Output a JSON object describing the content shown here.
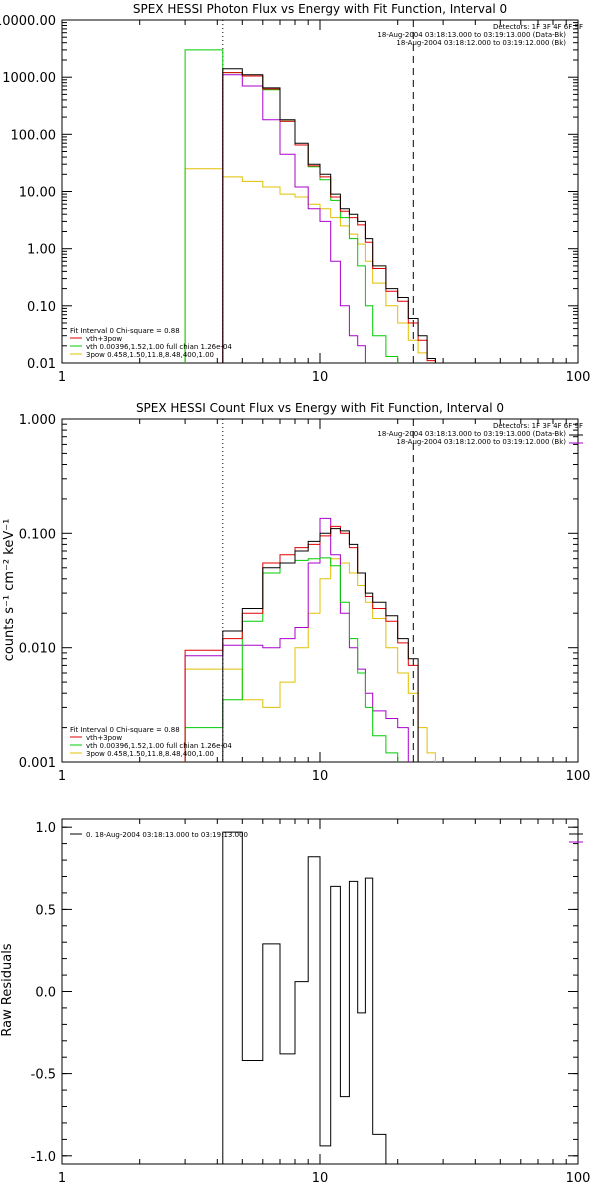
{
  "figure": {
    "background": "#ffffff",
    "colors": {
      "total": "#000000",
      "model": "#e00000",
      "vth": "#00cc00",
      "vth_dim": "#aa00cc",
      "powerlaw": "#e0c000"
    }
  },
  "chart_data": [
    {
      "type": "line",
      "title": "SPEX HESSI Photon Flux vs Energy with Fit Function, Interval 0",
      "xlabel": "",
      "ylabel": "",
      "xscale": "log",
      "yscale": "log",
      "xlim": [
        1,
        100
      ],
      "ylim": [
        0.01,
        10000
      ],
      "x_ticks": [
        1,
        10,
        100
      ],
      "x_tick_labels": [
        "1",
        "10",
        "100"
      ],
      "y_ticks": [
        0.01,
        0.1,
        1,
        10,
        100,
        1000,
        10000
      ],
      "y_tick_labels": [
        "0.01",
        "0.10",
        "1.00",
        "10.00",
        "100.00",
        "1000.00",
        "10000.00"
      ],
      "vlines": [
        {
          "x": 4.2,
          "style": "dotted"
        },
        {
          "x": 23,
          "style": "dashed"
        }
      ],
      "edges": [
        3,
        4.2,
        5,
        6,
        7,
        8,
        9,
        10,
        11,
        12,
        13,
        14,
        15,
        16,
        18,
        20,
        22,
        24,
        26,
        28,
        30
      ],
      "legend_top": [
        "Detectors: 1F 3F 4F 6F 9F",
        "18-Aug-2004 03:18:13.000 to 03:19:13.000 (Data-Bk)",
        "18-Aug-2004 03:18:12.000 to 03:19:12.000 (Bk)"
      ],
      "legend_bottom": [
        "Fit Interval 0   Chi-square = 0.88",
        "vth+3pow",
        "vth 0.00396,1.52,1.00  full chian 1.26e-04",
        "3pow 0.458,1.50,11.8,8.48,400,1.00"
      ],
      "series": [
        {
          "name": "",
          "role": "total",
          "values": [
            null,
            1400,
            1100,
            650,
            180,
            70,
            30,
            20,
            9,
            5,
            4,
            3,
            1.5,
            0.5,
            0.2,
            0.14,
            0.06,
            0.03,
            0.012,
            null
          ]
        },
        {
          "name": "vth+3pow",
          "role": "model",
          "values": [
            null,
            1200,
            1050,
            620,
            170,
            65,
            28,
            18,
            8,
            4.5,
            3.5,
            2.6,
            1.3,
            0.45,
            0.18,
            0.12,
            0.05,
            0.025,
            0.011,
            null
          ]
        },
        {
          "name": "vth",
          "role": "vth",
          "values": [
            3000,
            1200,
            1050,
            600,
            170,
            65,
            27,
            16,
            7,
            3.5,
            1.5,
            0.5,
            0.1,
            0.03,
            0.013,
            null,
            null,
            null,
            null,
            null
          ]
        },
        {
          "name": "",
          "role": "vth_dim",
          "values": [
            null,
            1100,
            700,
            180,
            45,
            12,
            5,
            3,
            0.6,
            0.1,
            0.03,
            0.02,
            null,
            null,
            null,
            null,
            null,
            null,
            null,
            null
          ]
        },
        {
          "name": "3pow",
          "role": "powerlaw",
          "values": [
            25,
            18,
            15,
            12,
            9,
            8,
            6,
            5,
            3.5,
            2.5,
            1.8,
            1.2,
            0.6,
            0.25,
            0.1,
            0.05,
            0.025,
            0.015,
            0.012,
            null
          ]
        }
      ]
    },
    {
      "type": "line",
      "title": "SPEX HESSI Count Flux vs Energy with Fit Function, Interval 0",
      "xlabel": "",
      "ylabel": "counts s⁻¹ cm⁻² keV⁻¹",
      "xscale": "log",
      "yscale": "log",
      "xlim": [
        1,
        100
      ],
      "ylim": [
        0.001,
        1
      ],
      "x_ticks": [
        1,
        10,
        100
      ],
      "x_tick_labels": [
        "1",
        "10",
        "100"
      ],
      "y_ticks": [
        0.001,
        0.01,
        0.1,
        1
      ],
      "y_tick_labels": [
        "0.001",
        "0.010",
        "0.100",
        "1.000"
      ],
      "vlines": [
        {
          "x": 4.2,
          "style": "dotted"
        },
        {
          "x": 23,
          "style": "dashed"
        }
      ],
      "edges": [
        3,
        4.2,
        5,
        6,
        7,
        8,
        9,
        10,
        11,
        12,
        13,
        14,
        15,
        16,
        18,
        20,
        22,
        24,
        26,
        28,
        30
      ],
      "legend_top": [
        "Detectors: 1F 3F 4F 6F 9F",
        "18-Aug-2004 03:18:13.000 to 03:19:13.000 (Data-Bk)",
        "18-Aug-2004 03:18:12.000 to 03:19:12.000 (Bk)"
      ],
      "legend_bottom": [
        "Fit Interval 0   Chi-square = 0.88",
        "vth+3pow",
        "vth 0.00396,1.52,1.00  full chian 1.26e-04",
        "3pow 0.458,1.50,11.8,8.48,400,1.00"
      ],
      "series": [
        {
          "name": "",
          "role": "total",
          "values": [
            null,
            0.014,
            0.022,
            0.05,
            0.055,
            0.07,
            0.085,
            0.1,
            0.11,
            0.105,
            0.08,
            0.045,
            0.03,
            0.025,
            0.019,
            0.012,
            0.008,
            null,
            null,
            null
          ]
        },
        {
          "name": "vth+3pow",
          "role": "model",
          "values": [
            0.0095,
            0.012,
            0.02,
            0.055,
            0.065,
            0.075,
            0.08,
            0.095,
            0.115,
            0.1,
            0.075,
            0.045,
            0.028,
            0.022,
            0.017,
            0.011,
            0.007,
            null,
            null,
            null
          ]
        },
        {
          "name": "vth",
          "role": "vth",
          "values": [
            0.002,
            0.0035,
            0.017,
            0.045,
            0.055,
            0.058,
            0.06,
            0.061,
            0.052,
            0.025,
            0.012,
            0.006,
            0.003,
            0.0017,
            0.0012,
            null,
            null,
            null,
            null,
            null
          ]
        },
        {
          "name": "",
          "role": "vth_dim",
          "values": [
            0.0085,
            0.0105,
            0.0105,
            0.01,
            0.012,
            0.015,
            0.055,
            0.135,
            0.065,
            0.02,
            0.01,
            0.0065,
            0.004,
            0.0028,
            0.0024,
            0.002,
            null,
            null,
            null,
            null
          ]
        },
        {
          "name": "3pow",
          "role": "powerlaw",
          "values": [
            0.0065,
            0.0065,
            0.0035,
            0.003,
            0.005,
            0.01,
            0.02,
            0.04,
            0.06,
            0.055,
            0.045,
            0.035,
            0.025,
            0.018,
            0.01,
            0.006,
            0.004,
            0.002,
            0.0012,
            null
          ]
        }
      ]
    },
    {
      "type": "line",
      "title": "",
      "xlabel": "",
      "ylabel": "Raw Residuals",
      "xscale": "log",
      "yscale": "linear",
      "xlim": [
        1,
        100
      ],
      "ylim": [
        -1.05,
        1.05
      ],
      "x_ticks": [
        1,
        10,
        100
      ],
      "x_tick_labels": [
        "1",
        "10",
        "100"
      ],
      "y_ticks": [
        -1,
        -0.5,
        0,
        0.5,
        1
      ],
      "y_tick_labels": [
        "-1.0",
        "-0.5",
        "0.0",
        "0.5",
        "1.0"
      ],
      "vlines": [],
      "edges": [
        4.2,
        5,
        6,
        7,
        8,
        9,
        10,
        11,
        12,
        13,
        14,
        15,
        16,
        18,
        20,
        22,
        24
      ],
      "legend_top": [],
      "legend_bottom": [],
      "legend_residual": "0. 18-Aug-2004 03:18:13.000 to 03:19:13.000",
      "series": [
        {
          "name": "0. 18-Aug-2004 03:18:13.000 to 03:19:13.000",
          "role": "total",
          "values": [
            0.97,
            -0.42,
            0.29,
            -0.38,
            0.06,
            0.82,
            -0.94,
            0.64,
            -0.64,
            0.67,
            -0.13,
            0.69,
            -0.87,
            null,
            null,
            null
          ]
        }
      ]
    }
  ]
}
